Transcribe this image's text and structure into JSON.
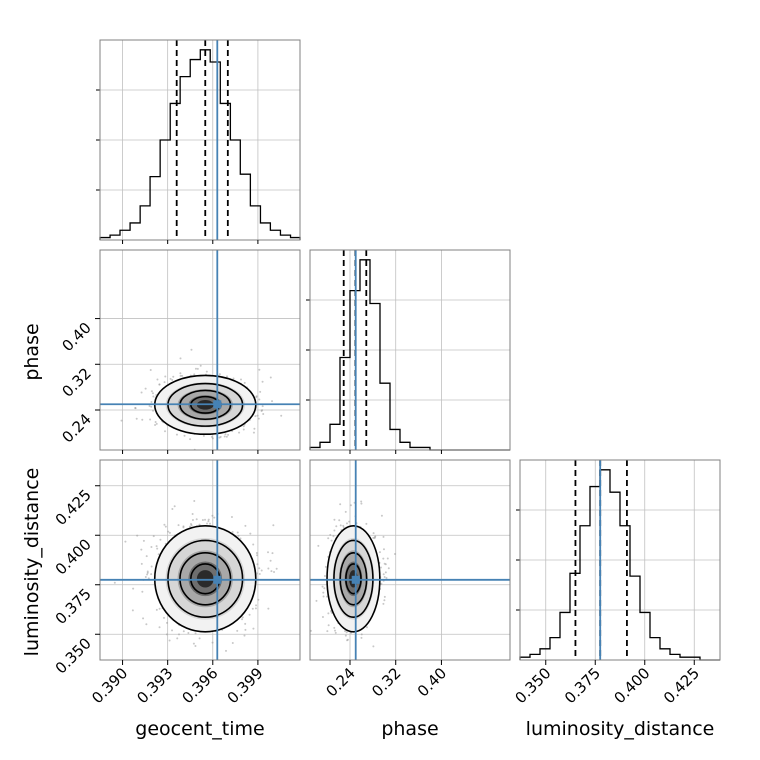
{
  "chart_data": {
    "type": "corner",
    "parameters": [
      "geocent_time",
      "phase",
      "luminosity_distance"
    ],
    "truths": {
      "geocent_time": 0.3963,
      "phase": 0.25,
      "luminosity_distance": 0.3775
    },
    "colors": {
      "truth": "#4682b4",
      "hist": "#000000",
      "grid": "#c0c0c0",
      "frame": "#808080"
    },
    "grid": true,
    "axes": {
      "geocent_time": {
        "range": [
          0.3885,
          0.4018
        ],
        "ticks": [
          0.39,
          0.393,
          0.396,
          0.399
        ],
        "tick_labels": [
          "0.390",
          "0.393",
          "0.396",
          "0.399"
        ]
      },
      "phase": {
        "range": [
          0.17,
          0.52
        ],
        "ticks": [
          0.24,
          0.32,
          0.4
        ],
        "tick_labels": [
          "0.24",
          "0.32",
          "0.40"
        ]
      },
      "luminosity_distance": {
        "range": [
          0.337,
          0.438
        ],
        "ticks": [
          0.35,
          0.375,
          0.4,
          0.425
        ],
        "tick_labels": [
          "0.350",
          "0.375",
          "0.400",
          "0.425"
        ]
      }
    },
    "hist_1d": {
      "geocent_time": {
        "bin_edges": [
          0.3885,
          0.38917,
          0.38983,
          0.3905,
          0.39117,
          0.39183,
          0.3925,
          0.39317,
          0.39383,
          0.3945,
          0.39517,
          0.39583,
          0.3965,
          0.39717,
          0.39783,
          0.3985,
          0.39917,
          0.39983,
          0.4005,
          0.40117,
          0.4018
        ],
        "counts": [
          1,
          2,
          4,
          7,
          14,
          26,
          41,
          56,
          67,
          74,
          78,
          73,
          56,
          41,
          27,
          14,
          7,
          4,
          2,
          1
        ],
        "quantiles": [
          0.3936,
          0.3955,
          0.397
        ]
      },
      "phase": {
        "bin_edges": [
          0.17,
          0.1875,
          0.205,
          0.2225,
          0.24,
          0.2575,
          0.275,
          0.2925,
          0.31,
          0.3275,
          0.345,
          0.3625,
          0.38,
          0.3975,
          0.415,
          0.4325,
          0.45,
          0.4675,
          0.485,
          0.5025,
          0.52
        ],
        "counts": [
          1,
          3,
          10,
          36,
          62,
          74,
          57,
          26,
          8,
          3,
          1,
          1,
          0,
          0,
          0,
          0,
          0,
          0,
          0,
          0
        ],
        "quantiles": [
          0.229,
          0.2495,
          0.2685
        ]
      },
      "luminosity_distance": {
        "bin_edges": [
          0.337,
          0.34205,
          0.3471,
          0.35215,
          0.3572,
          0.36225,
          0.3673,
          0.37235,
          0.3774,
          0.38245,
          0.3875,
          0.39255,
          0.3976,
          0.40265,
          0.4077,
          0.41275,
          0.4178,
          0.42285,
          0.4279,
          0.43295,
          0.438
        ],
        "counts": [
          1,
          2,
          4,
          8,
          17,
          31,
          48,
          62,
          68,
          60,
          48,
          30,
          17,
          8,
          4,
          2,
          1,
          1,
          0,
          0
        ],
        "quantiles": [
          0.365,
          0.3775,
          0.391
        ]
      }
    },
    "hist_2d": [
      {
        "x": "geocent_time",
        "y": "phase",
        "center": [
          0.3955,
          0.249
        ],
        "sigma": [
          0.0016,
          0.024
        ]
      },
      {
        "x": "geocent_time",
        "y": "luminosity_distance",
        "center": [
          0.3955,
          0.378
        ],
        "sigma": [
          0.0016,
          0.0125
        ]
      },
      {
        "x": "phase",
        "y": "luminosity_distance",
        "center": [
          0.246,
          0.378
        ],
        "sigma": [
          0.022,
          0.0125
        ]
      }
    ],
    "labels": {
      "geocent_time": "geocent_time",
      "phase": "phase",
      "luminosity_distance": "luminosity_distance"
    }
  }
}
